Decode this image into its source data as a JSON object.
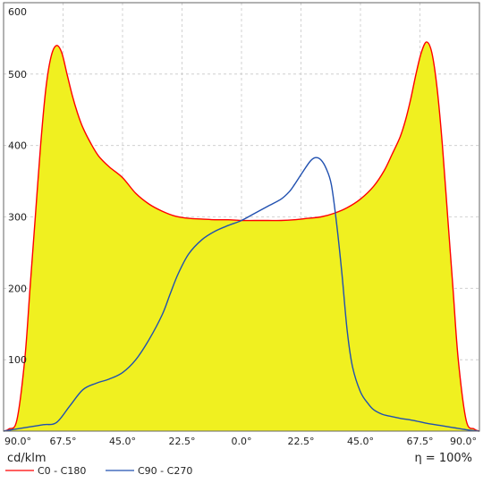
{
  "chart_data": {
    "type": "area",
    "unit_label": "cd/klm",
    "efficiency_label": "η = 100%",
    "ylim": [
      0,
      600
    ],
    "yticks": [
      100,
      200,
      300,
      400,
      500,
      600
    ],
    "xlim": [
      -90,
      90
    ],
    "xticks": [
      {
        "value": -90,
        "label": "90.0°"
      },
      {
        "value": -67.5,
        "label": "67.5°"
      },
      {
        "value": -45,
        "label": "45.0°"
      },
      {
        "value": -22.5,
        "label": "22.5°"
      },
      {
        "value": 0,
        "label": "0.0°"
      },
      {
        "value": 22.5,
        "label": "22.5°"
      },
      {
        "value": 45,
        "label": "45.0°"
      },
      {
        "value": 67.5,
        "label": "67.5°"
      },
      {
        "value": 90,
        "label": "90.0°"
      }
    ],
    "grid": true,
    "legend_position": "bottom-left",
    "series": [
      {
        "name": "C0 - C180",
        "color": "#ff0000",
        "fill": "#f0f020",
        "x": [
          -90,
          -88,
          -85,
          -82,
          -80,
          -78,
          -76,
          -74,
          -72,
          -70,
          -68,
          -66,
          -64,
          -62,
          -60,
          -57,
          -54,
          -50,
          -45,
          -40,
          -35,
          -30,
          -25,
          -20,
          -15,
          -10,
          -5,
          0,
          5,
          10,
          15,
          20,
          25,
          30,
          35,
          40,
          45,
          50,
          54,
          57,
          60,
          62,
          64,
          66,
          68,
          70,
          72,
          74,
          76,
          78,
          80,
          82,
          85,
          88,
          90
        ],
        "values": [
          0,
          3,
          15,
          100,
          200,
          300,
          400,
          480,
          525,
          540,
          530,
          500,
          470,
          445,
          425,
          403,
          385,
          370,
          355,
          333,
          318,
          308,
          301,
          298,
          297,
          296,
          296,
          295,
          295,
          295,
          295,
          296,
          298,
          300,
          305,
          313,
          325,
          343,
          365,
          388,
          412,
          435,
          465,
          500,
          530,
          545,
          530,
          480,
          400,
          300,
          200,
          100,
          15,
          3,
          0
        ]
      },
      {
        "name": "C90 - C270",
        "color": "#2050b0",
        "x": [
          -90,
          -85,
          -80,
          -75,
          -70,
          -65,
          -60,
          -55,
          -50,
          -45,
          -40,
          -35,
          -30,
          -27,
          -24,
          -20,
          -15,
          -10,
          -5,
          0,
          5,
          10,
          15,
          18,
          20,
          23,
          26,
          28,
          30,
          32,
          34,
          36,
          38,
          40,
          42,
          45,
          48,
          50,
          53,
          56,
          60,
          65,
          70,
          75,
          80,
          85,
          90
        ],
        "values": [
          0,
          3,
          6,
          9,
          12,
          35,
          58,
          67,
          73,
          82,
          100,
          128,
          163,
          192,
          220,
          248,
          268,
          280,
          288,
          295,
          305,
          315,
          325,
          335,
          345,
          362,
          378,
          383,
          380,
          368,
          345,
          290,
          220,
          140,
          90,
          55,
          38,
          30,
          24,
          21,
          18,
          15,
          11,
          8,
          5,
          2,
          0
        ]
      }
    ]
  }
}
